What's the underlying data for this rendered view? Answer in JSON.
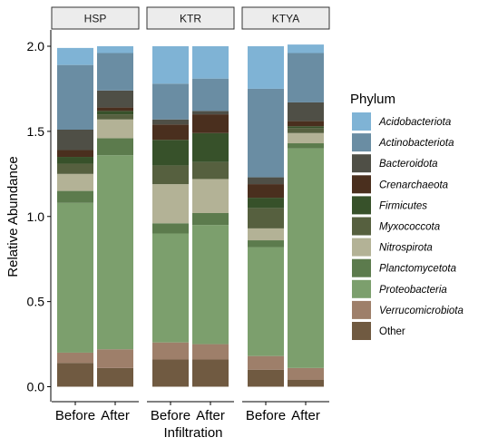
{
  "chart_data": {
    "type": "bar",
    "stacked": true,
    "facet_labels": [
      "HSP",
      "KTR",
      "KTYA"
    ],
    "categories": [
      "Before",
      "After"
    ],
    "xlabel": "Infiltration",
    "ylabel": "Relative Abundance",
    "ylim": [
      0,
      2.1
    ],
    "yticks": [
      0.0,
      0.5,
      1.0,
      1.5,
      2.0
    ],
    "ytick_labels": [
      "0.0",
      "0.5",
      "1.0",
      "1.5",
      "2.0"
    ],
    "legend_title": "Phylum",
    "legend_position": "right",
    "grid": false,
    "colors": {
      "Acidobacteriota": "#7fb3d5",
      "Actinobacteriota": "#6a8da3",
      "Bacteroidota": "#4f4f46",
      "Crenarchaeota": "#4a2f1e",
      "Firmicutes": "#37512a",
      "Myxococcota": "#56603f",
      "Nitrospirota": "#b3b296",
      "Planctomycetota": "#5c7b4d",
      "Proteobacteria": "#7c9f6d",
      "Verrucomicrobiota": "#9e7f6a",
      "Other": "#705a41"
    },
    "stack_order": [
      "Other",
      "Verrucomicrobiota",
      "Proteobacteria",
      "Planctomycetota",
      "Nitrospirota",
      "Myxococcota",
      "Firmicutes",
      "Crenarchaeota",
      "Bacteroidota",
      "Actinobacteriota",
      "Acidobacteriota"
    ],
    "legend_entries": [
      "Acidobacteriota",
      "Actinobacteriota",
      "Bacteroidota",
      "Crenarchaeota",
      "Firmicutes",
      "Myxococcota",
      "Nitrospirota",
      "Planctomycetota",
      "Proteobacteria",
      "Verrucomicrobiota",
      "Other"
    ],
    "legend_italic": [
      true,
      true,
      true,
      true,
      true,
      true,
      true,
      true,
      true,
      true,
      false
    ],
    "panels": [
      {
        "name": "HSP",
        "bars": [
          {
            "category": "Before",
            "segments": [
              {
                "phylum": "Other",
                "value": 0.14
              },
              {
                "phylum": "Verrucomicrobiota",
                "value": 0.06
              },
              {
                "phylum": "Proteobacteria",
                "value": 0.88
              },
              {
                "phylum": "Planctomycetota",
                "value": 0.07
              },
              {
                "phylum": "Nitrospirota",
                "value": 0.1
              },
              {
                "phylum": "Myxococcota",
                "value": 0.06
              },
              {
                "phylum": "Firmicutes",
                "value": 0.04
              },
              {
                "phylum": "Crenarchaeota",
                "value": 0.04
              },
              {
                "phylum": "Bacteroidota",
                "value": 0.12
              },
              {
                "phylum": "Actinobacteriota",
                "value": 0.38
              },
              {
                "phylum": "Acidobacteriota",
                "value": 0.1
              }
            ]
          },
          {
            "category": "After",
            "segments": [
              {
                "phylum": "Other",
                "value": 0.11
              },
              {
                "phylum": "Verrucomicrobiota",
                "value": 0.11
              },
              {
                "phylum": "Proteobacteria",
                "value": 1.14
              },
              {
                "phylum": "Planctomycetota",
                "value": 0.1
              },
              {
                "phylum": "Nitrospirota",
                "value": 0.11
              },
              {
                "phylum": "Myxococcota",
                "value": 0.03
              },
              {
                "phylum": "Firmicutes",
                "value": 0.02
              },
              {
                "phylum": "Crenarchaeota",
                "value": 0.02
              },
              {
                "phylum": "Bacteroidota",
                "value": 0.1
              },
              {
                "phylum": "Actinobacteriota",
                "value": 0.22
              },
              {
                "phylum": "Acidobacteriota",
                "value": 0.04
              }
            ]
          }
        ]
      },
      {
        "name": "KTR",
        "bars": [
          {
            "category": "Before",
            "segments": [
              {
                "phylum": "Other",
                "value": 0.16
              },
              {
                "phylum": "Verrucomicrobiota",
                "value": 0.1
              },
              {
                "phylum": "Proteobacteria",
                "value": 0.64
              },
              {
                "phylum": "Planctomycetota",
                "value": 0.06
              },
              {
                "phylum": "Nitrospirota",
                "value": 0.23
              },
              {
                "phylum": "Myxococcota",
                "value": 0.11
              },
              {
                "phylum": "Firmicutes",
                "value": 0.15
              },
              {
                "phylum": "Crenarchaeota",
                "value": 0.09
              },
              {
                "phylum": "Bacteroidota",
                "value": 0.03
              },
              {
                "phylum": "Actinobacteriota",
                "value": 0.21
              },
              {
                "phylum": "Acidobacteriota",
                "value": 0.22
              }
            ]
          },
          {
            "category": "After",
            "segments": [
              {
                "phylum": "Other",
                "value": 0.16
              },
              {
                "phylum": "Verrucomicrobiota",
                "value": 0.09
              },
              {
                "phylum": "Proteobacteria",
                "value": 0.7
              },
              {
                "phylum": "Planctomycetota",
                "value": 0.07
              },
              {
                "phylum": "Nitrospirota",
                "value": 0.2
              },
              {
                "phylum": "Myxococcota",
                "value": 0.1
              },
              {
                "phylum": "Firmicutes",
                "value": 0.17
              },
              {
                "phylum": "Crenarchaeota",
                "value": 0.11
              },
              {
                "phylum": "Bacteroidota",
                "value": 0.02
              },
              {
                "phylum": "Actinobacteriota",
                "value": 0.19
              },
              {
                "phylum": "Acidobacteriota",
                "value": 0.19
              }
            ]
          }
        ]
      },
      {
        "name": "KTYA",
        "bars": [
          {
            "category": "Before",
            "segments": [
              {
                "phylum": "Other",
                "value": 0.1
              },
              {
                "phylum": "Verrucomicrobiota",
                "value": 0.08
              },
              {
                "phylum": "Proteobacteria",
                "value": 0.64
              },
              {
                "phylum": "Planctomycetota",
                "value": 0.04
              },
              {
                "phylum": "Nitrospirota",
                "value": 0.07
              },
              {
                "phylum": "Myxococcota",
                "value": 0.12
              },
              {
                "phylum": "Firmicutes",
                "value": 0.06
              },
              {
                "phylum": "Crenarchaeota",
                "value": 0.08
              },
              {
                "phylum": "Bacteroidota",
                "value": 0.04
              },
              {
                "phylum": "Actinobacteriota",
                "value": 0.52
              },
              {
                "phylum": "Acidobacteriota",
                "value": 0.25
              }
            ]
          },
          {
            "category": "After",
            "segments": [
              {
                "phylum": "Other",
                "value": 0.04
              },
              {
                "phylum": "Verrucomicrobiota",
                "value": 0.07
              },
              {
                "phylum": "Proteobacteria",
                "value": 1.29
              },
              {
                "phylum": "Planctomycetota",
                "value": 0.03
              },
              {
                "phylum": "Nitrospirota",
                "value": 0.06
              },
              {
                "phylum": "Myxococcota",
                "value": 0.03
              },
              {
                "phylum": "Firmicutes",
                "value": 0.01
              },
              {
                "phylum": "Crenarchaeota",
                "value": 0.03
              },
              {
                "phylum": "Bacteroidota",
                "value": 0.11
              },
              {
                "phylum": "Actinobacteriota",
                "value": 0.29
              },
              {
                "phylum": "Acidobacteriota",
                "value": 0.05
              }
            ]
          }
        ]
      }
    ]
  }
}
